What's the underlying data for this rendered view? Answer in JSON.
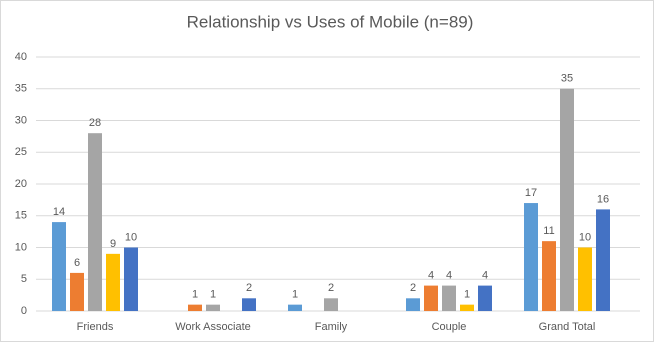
{
  "chart_data": {
    "type": "bar",
    "title": "Relationship vs Uses of Mobile (n=89)",
    "categories": [
      "Friends",
      "Work Associate",
      "Family",
      "Couple",
      "Grand Total"
    ],
    "series": [
      {
        "color": "#5b9bd5",
        "values": [
          14,
          null,
          1,
          2,
          17
        ]
      },
      {
        "color": "#ed7d31",
        "values": [
          6,
          1,
          null,
          4,
          11
        ]
      },
      {
        "color": "#a5a5a5",
        "values": [
          28,
          1,
          2,
          4,
          35
        ]
      },
      {
        "color": "#ffc000",
        "values": [
          9,
          null,
          null,
          1,
          10
        ]
      },
      {
        "color": "#4472c4",
        "values": [
          10,
          2,
          null,
          4,
          16
        ]
      }
    ],
    "ylim": [
      0,
      40
    ],
    "yticks": [
      0,
      5,
      10,
      15,
      20,
      25,
      30,
      35,
      40
    ],
    "grid": true
  }
}
